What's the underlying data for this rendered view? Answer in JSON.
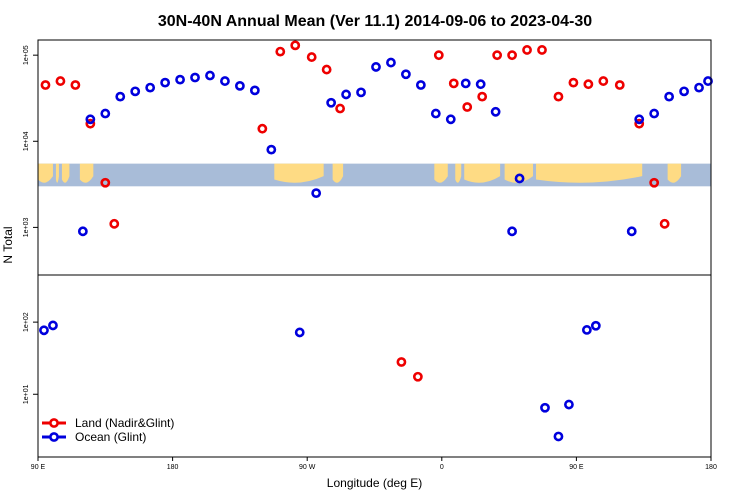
{
  "chart_data": {
    "type": "scatter",
    "title": "30N-40N Annual Mean (Ver 11.1)   2014-09-06 to 2023-04-30",
    "xlabel": "Longitude (deg E)",
    "ylabel": "N Total",
    "x_ticks": [
      {
        "value": 90,
        "label": "90 E"
      },
      {
        "value": 180,
        "label": "180"
      },
      {
        "value": 270,
        "label": "90 W"
      },
      {
        "value": 360,
        "label": "0"
      },
      {
        "value": 450,
        "label": "90 E"
      },
      {
        "value": 540,
        "label": "180"
      }
    ],
    "xlim": [
      90,
      540
    ],
    "upper_panel": {
      "scale": "log",
      "ylim": [
        280,
        150000
      ],
      "y_ticks": [
        {
          "value": 1000,
          "label": "1e+03"
        },
        {
          "value": 10000,
          "label": "1e+04"
        },
        {
          "value": 100000,
          "label": "1e+05"
        }
      ],
      "map_band": {
        "y_top": 5500,
        "y_bottom": 3000,
        "ocean_color": "#a8bcd8",
        "land_color": "#fedb84"
      }
    },
    "lower_panel": {
      "scale": "log",
      "ylim": [
        1.35,
        450
      ],
      "y_ticks": [
        {
          "value": 10,
          "label": "1e+01"
        },
        {
          "value": 100,
          "label": "1e+02"
        }
      ]
    },
    "series": [
      {
        "name": "Land (Nadir&Glint)",
        "color": "#ee0000",
        "upper_points": [
          [
            95,
            45000
          ],
          [
            105,
            50000
          ],
          [
            115,
            45000
          ],
          [
            125,
            16000
          ],
          [
            135,
            3300
          ],
          [
            141,
            1100
          ],
          [
            240,
            14000
          ],
          [
            252,
            110000
          ],
          [
            262,
            130000
          ],
          [
            273,
            95000
          ],
          [
            283,
            68000
          ],
          [
            292,
            24000
          ],
          [
            358,
            100000
          ],
          [
            368,
            47000
          ],
          [
            377,
            25000
          ],
          [
            387,
            33000
          ],
          [
            397,
            100000
          ],
          [
            407,
            100000
          ],
          [
            417,
            115000
          ],
          [
            427,
            115000
          ],
          [
            438,
            33000
          ],
          [
            448,
            48000
          ],
          [
            458,
            46000
          ],
          [
            468,
            50000
          ],
          [
            479,
            45000
          ],
          [
            492,
            16000
          ],
          [
            502,
            3300
          ],
          [
            509,
            1100
          ]
        ],
        "lower_points": [
          [
            333,
            28
          ],
          [
            344,
            17.5
          ]
        ]
      },
      {
        "name": "Ocean (Glint)",
        "color": "#0000dd",
        "upper_points": [
          [
            120,
            900
          ],
          [
            125,
            18000
          ],
          [
            135,
            21000
          ],
          [
            145,
            33000
          ],
          [
            155,
            38000
          ],
          [
            165,
            42000
          ],
          [
            175,
            48000
          ],
          [
            185,
            52000
          ],
          [
            195,
            55000
          ],
          [
            205,
            58000
          ],
          [
            215,
            50000
          ],
          [
            225,
            44000
          ],
          [
            235,
            39000
          ],
          [
            246,
            8000
          ],
          [
            276,
            2500
          ],
          [
            286,
            28000
          ],
          [
            296,
            35000
          ],
          [
            306,
            37000
          ],
          [
            316,
            73000
          ],
          [
            326,
            82000
          ],
          [
            336,
            60000
          ],
          [
            346,
            45000
          ],
          [
            356,
            21000
          ],
          [
            366,
            18000
          ],
          [
            376,
            47000
          ],
          [
            386,
            46000
          ],
          [
            396,
            22000
          ],
          [
            407,
            900
          ],
          [
            412,
            3700
          ],
          [
            487,
            900
          ],
          [
            492,
            18000
          ],
          [
            502,
            21000
          ],
          [
            512,
            33000
          ],
          [
            522,
            38000
          ],
          [
            532,
            42000
          ],
          [
            538,
            50000
          ]
        ],
        "lower_points": [
          [
            94,
            77
          ],
          [
            100,
            90
          ],
          [
            265,
            72
          ],
          [
            429,
            6.5
          ],
          [
            438,
            2.6
          ],
          [
            445,
            7.2
          ],
          [
            457,
            78
          ],
          [
            463,
            89
          ]
        ]
      }
    ],
    "legend": {
      "location": "bottom-left",
      "entries": [
        "Land (Nadir&Glint)",
        "Ocean (Glint)"
      ]
    }
  }
}
